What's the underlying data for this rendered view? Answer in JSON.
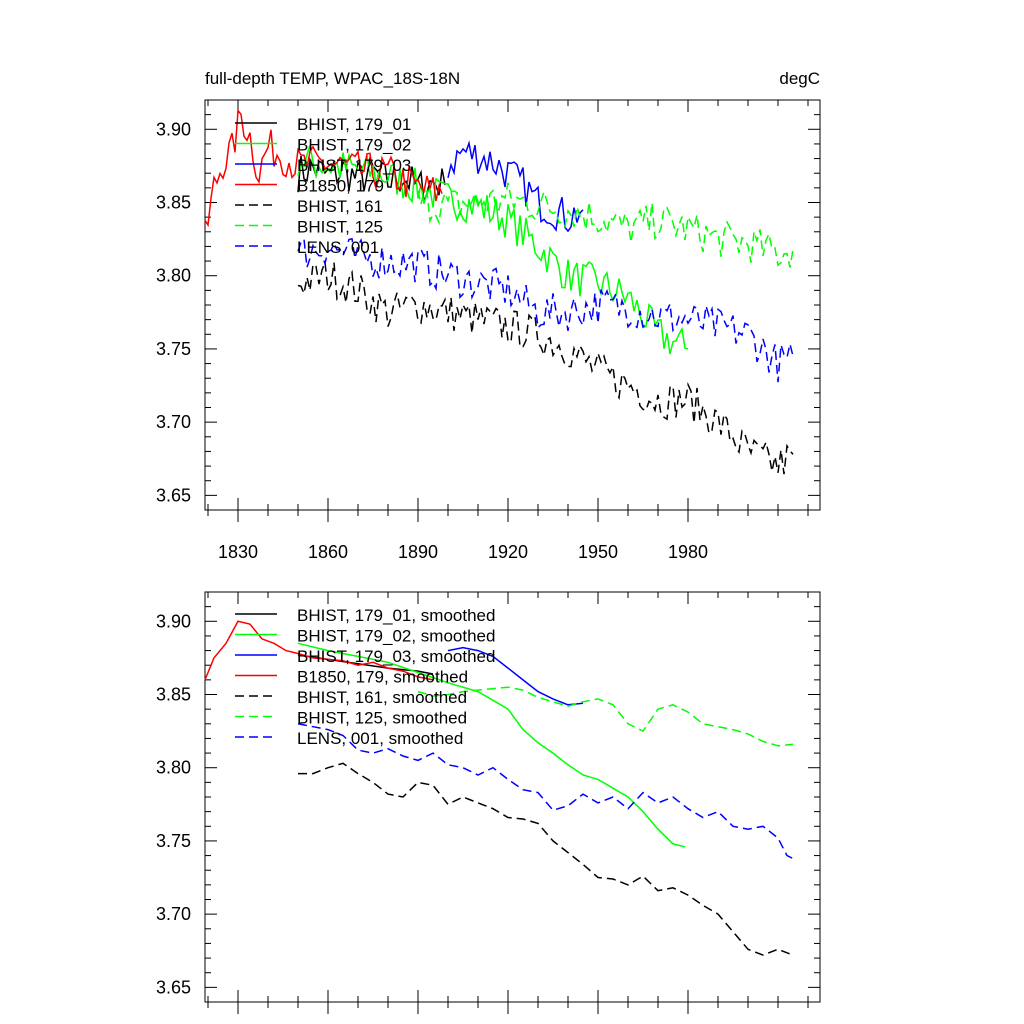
{
  "title_left": "full-depth TEMP, WPAC_18S-18N",
  "title_right": "degC",
  "colors": {
    "black": "#000000",
    "green": "#00ff00",
    "blue": "#0000ff",
    "red": "#ff0000"
  },
  "chart_data": [
    {
      "type": "line",
      "title": "full-depth TEMP, WPAC_18S-18N",
      "units": "degC",
      "xlim": [
        1819,
        2024
      ],
      "ylim": [
        3.64,
        3.92
      ],
      "xticks": [
        1830,
        1860,
        1890,
        1920,
        1950,
        1980
      ],
      "yticks": [
        3.65,
        3.7,
        3.75,
        3.8,
        3.85,
        3.9
      ],
      "ytick_labels": [
        "3.65",
        "3.70",
        "3.75",
        "3.80",
        "3.85",
        "3.90"
      ],
      "xtick_labels": [
        "1830",
        "1860",
        "1890",
        "1920",
        "1950",
        "1980"
      ],
      "legend_position": "top-left",
      "series": [
        {
          "name": "BHIST, 179_01",
          "color": "black",
          "dash": false,
          "style": "noisy",
          "x": [
            1850,
            1855,
            1860,
            1865,
            1870,
            1875,
            1880,
            1885,
            1890,
            1895,
            1899
          ],
          "y": [
            3.87,
            3.874,
            3.868,
            3.872,
            3.866,
            3.87,
            3.864,
            3.868,
            3.86,
            3.864,
            3.862
          ]
        },
        {
          "name": "BHIST, 179_02",
          "color": "green",
          "dash": false,
          "style": "noisy",
          "x": [
            1850,
            1860,
            1870,
            1880,
            1890,
            1900,
            1910,
            1920,
            1930,
            1940,
            1950,
            1960,
            1970,
            1980
          ],
          "y": [
            3.88,
            3.875,
            3.872,
            3.868,
            3.86,
            3.852,
            3.848,
            3.838,
            3.82,
            3.8,
            3.795,
            3.785,
            3.76,
            3.75
          ]
        },
        {
          "name": "BHIST, 179_03",
          "color": "blue",
          "dash": false,
          "style": "noisy",
          "x": [
            1900,
            1905,
            1910,
            1915,
            1920,
            1925,
            1930,
            1935,
            1940,
            1945
          ],
          "y": [
            3.875,
            3.885,
            3.882,
            3.878,
            3.87,
            3.862,
            3.85,
            3.845,
            3.84,
            3.845
          ]
        },
        {
          "name": "B1850, 179",
          "color": "red",
          "dash": false,
          "style": "noisy",
          "x": [
            1819,
            1822,
            1825,
            1828,
            1831,
            1834,
            1837,
            1840,
            1845,
            1850,
            1860,
            1870,
            1880,
            1890,
            1898
          ],
          "y": [
            3.825,
            3.86,
            3.878,
            3.885,
            3.91,
            3.895,
            3.87,
            3.888,
            3.882,
            3.875,
            3.877,
            3.872,
            3.87,
            3.86,
            3.856
          ]
        },
        {
          "name": "BHIST, 161",
          "color": "black",
          "dash": true,
          "style": "noisy",
          "x": [
            1850,
            1860,
            1870,
            1880,
            1890,
            1900,
            1910,
            1920,
            1930,
            1940,
            1950,
            1960,
            1970,
            1980,
            1990,
            2000,
            2010,
            2015
          ],
          "y": [
            3.795,
            3.8,
            3.79,
            3.775,
            3.78,
            3.775,
            3.77,
            3.765,
            3.76,
            3.75,
            3.735,
            3.725,
            3.715,
            3.715,
            3.7,
            3.68,
            3.67,
            3.678
          ]
        },
        {
          "name": "BHIST, 125",
          "color": "green",
          "dash": true,
          "style": "noisy",
          "x": [
            1890,
            1900,
            1910,
            1920,
            1930,
            1940,
            1950,
            1960,
            1970,
            1980,
            1990,
            2000,
            2010,
            2015
          ],
          "y": [
            3.85,
            3.848,
            3.85,
            3.852,
            3.848,
            3.845,
            3.84,
            3.832,
            3.838,
            3.832,
            3.825,
            3.822,
            3.815,
            3.818
          ]
        },
        {
          "name": "LENS, 001",
          "color": "blue",
          "dash": true,
          "style": "noisy",
          "x": [
            1850,
            1860,
            1870,
            1880,
            1890,
            1900,
            1910,
            1920,
            1930,
            1940,
            1950,
            1960,
            1970,
            1980,
            1990,
            2000,
            2010,
            2015
          ],
          "y": [
            3.815,
            3.82,
            3.812,
            3.81,
            3.808,
            3.8,
            3.795,
            3.79,
            3.775,
            3.775,
            3.78,
            3.778,
            3.772,
            3.77,
            3.765,
            3.76,
            3.74,
            3.745
          ]
        }
      ]
    },
    {
      "type": "line",
      "xlim": [
        1819,
        2024
      ],
      "ylim": [
        3.64,
        3.92
      ],
      "xticks": [
        1830,
        1860,
        1890,
        1920,
        1950,
        1980
      ],
      "yticks": [
        3.65,
        3.7,
        3.75,
        3.8,
        3.85,
        3.9
      ],
      "ytick_labels": [
        "3.65",
        "3.70",
        "3.75",
        "3.80",
        "3.85",
        "3.90"
      ],
      "legend_position": "top-left",
      "series": [
        {
          "name": "BHIST, 179_01, smoothed",
          "color": "black",
          "dash": false,
          "style": "smooth",
          "x": [
            1850,
            1860,
            1870,
            1880,
            1890,
            1895
          ],
          "y": [
            3.877,
            3.874,
            3.871,
            3.868,
            3.866,
            3.864
          ]
        },
        {
          "name": "BHIST, 179_02, smoothed",
          "color": "green",
          "dash": false,
          "style": "smooth",
          "x": [
            1850,
            1860,
            1870,
            1880,
            1890,
            1900,
            1910,
            1920,
            1925,
            1930,
            1935,
            1940,
            1945,
            1950,
            1955,
            1960,
            1965,
            1970,
            1975,
            1979
          ],
          "y": [
            3.885,
            3.88,
            3.876,
            3.872,
            3.865,
            3.858,
            3.852,
            3.84,
            3.826,
            3.817,
            3.81,
            3.802,
            3.795,
            3.792,
            3.786,
            3.78,
            3.77,
            3.758,
            3.748,
            3.746
          ]
        },
        {
          "name": "BHIST, 179_03, smoothed",
          "color": "blue",
          "dash": false,
          "style": "smooth",
          "x": [
            1900,
            1905,
            1910,
            1915,
            1920,
            1925,
            1930,
            1935,
            1940,
            1945
          ],
          "y": [
            3.88,
            3.882,
            3.88,
            3.876,
            3.868,
            3.86,
            3.852,
            3.847,
            3.843,
            3.844
          ]
        },
        {
          "name": "B1850, 179, smoothed",
          "color": "red",
          "dash": false,
          "style": "smooth",
          "x": [
            1819,
            1822,
            1826,
            1830,
            1834,
            1838,
            1842,
            1846,
            1850,
            1855,
            1860,
            1865,
            1870,
            1875,
            1880,
            1885,
            1890,
            1895
          ],
          "y": [
            3.86,
            3.875,
            3.885,
            3.9,
            3.898,
            3.888,
            3.885,
            3.88,
            3.878,
            3.875,
            3.874,
            3.873,
            3.87,
            3.872,
            3.868,
            3.866,
            3.862,
            3.86
          ]
        },
        {
          "name": "BHIST, 161, smoothed",
          "color": "black",
          "dash": true,
          "style": "smooth",
          "x": [
            1850,
            1855,
            1860,
            1865,
            1870,
            1875,
            1880,
            1885,
            1890,
            1895,
            1900,
            1905,
            1910,
            1915,
            1920,
            1925,
            1930,
            1935,
            1940,
            1945,
            1950,
            1955,
            1960,
            1965,
            1970,
            1975,
            1980,
            1985,
            1990,
            1995,
            2000,
            2005,
            2010,
            2015
          ],
          "y": [
            3.796,
            3.796,
            3.8,
            3.803,
            3.796,
            3.79,
            3.782,
            3.78,
            3.79,
            3.788,
            3.775,
            3.78,
            3.776,
            3.772,
            3.766,
            3.765,
            3.762,
            3.75,
            3.742,
            3.734,
            3.725,
            3.724,
            3.72,
            3.726,
            3.716,
            3.718,
            3.713,
            3.706,
            3.7,
            3.688,
            3.676,
            3.672,
            3.676,
            3.672
          ]
        },
        {
          "name": "BHIST, 125, smoothed",
          "color": "green",
          "dash": true,
          "style": "smooth",
          "x": [
            1890,
            1895,
            1900,
            1905,
            1910,
            1915,
            1920,
            1925,
            1930,
            1935,
            1940,
            1945,
            1950,
            1955,
            1960,
            1965,
            1970,
            1975,
            1980,
            1985,
            1990,
            1995,
            2000,
            2005,
            2010,
            2015
          ],
          "y": [
            3.852,
            3.849,
            3.85,
            3.852,
            3.853,
            3.854,
            3.855,
            3.853,
            3.848,
            3.845,
            3.842,
            3.845,
            3.847,
            3.843,
            3.83,
            3.825,
            3.84,
            3.843,
            3.838,
            3.83,
            3.828,
            3.826,
            3.823,
            3.818,
            3.815,
            3.816
          ]
        },
        {
          "name": "LENS, 001, smoothed",
          "color": "blue",
          "dash": true,
          "style": "smooth",
          "x": [
            1850,
            1855,
            1860,
            1865,
            1870,
            1875,
            1880,
            1885,
            1890,
            1895,
            1900,
            1905,
            1910,
            1915,
            1920,
            1925,
            1930,
            1935,
            1940,
            1945,
            1950,
            1955,
            1960,
            1965,
            1970,
            1975,
            1980,
            1985,
            1990,
            1995,
            2000,
            2005,
            2010,
            2013,
            2015
          ],
          "y": [
            3.83,
            3.828,
            3.826,
            3.822,
            3.812,
            3.81,
            3.813,
            3.808,
            3.805,
            3.81,
            3.802,
            3.8,
            3.795,
            3.8,
            3.792,
            3.785,
            3.783,
            3.771,
            3.774,
            3.782,
            3.776,
            3.78,
            3.772,
            3.783,
            3.776,
            3.78,
            3.772,
            3.766,
            3.77,
            3.76,
            3.758,
            3.76,
            3.752,
            3.74,
            3.738
          ]
        }
      ]
    }
  ]
}
